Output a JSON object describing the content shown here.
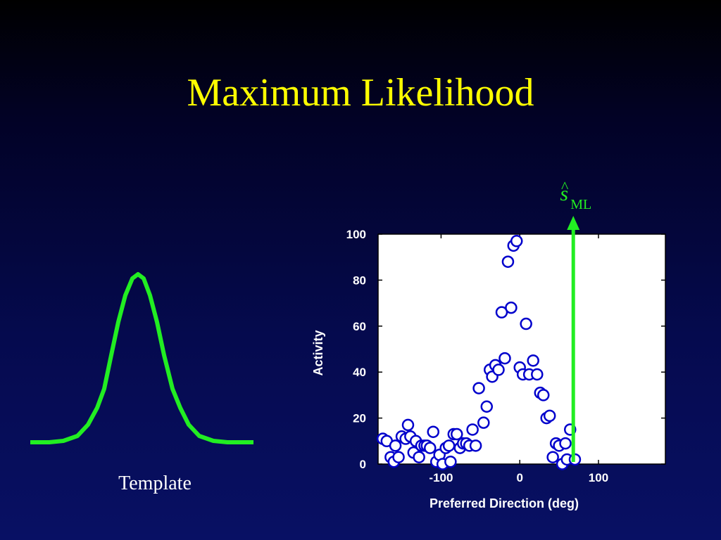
{
  "title": "Maximum Likelihood",
  "template": {
    "caption": "Template",
    "color": "#22ee22"
  },
  "estimate": {
    "symbol": "s",
    "accent": "^",
    "subscript": "ML",
    "x": 68,
    "color": "#22ee22"
  },
  "chart_data": {
    "type": "scatter",
    "xlabel": "Preferred Direction (deg)",
    "ylabel": "Activity",
    "xlim": [
      -180,
      185
    ],
    "ylim": [
      0,
      100
    ],
    "xticks": [
      -100,
      0,
      100
    ],
    "yticks": [
      0,
      20,
      40,
      60,
      80,
      100
    ],
    "xtick_labels": [
      "-100",
      "0",
      "100"
    ],
    "ytick_labels": [
      "0",
      "20",
      "40",
      "60",
      "80",
      "100"
    ],
    "grid": false,
    "marker_color": "#0000cc",
    "marker_fill": "#ffffff",
    "points": [
      [
        -174,
        11
      ],
      [
        -169,
        10
      ],
      [
        -164,
        3
      ],
      [
        -160,
        1
      ],
      [
        -158,
        8
      ],
      [
        -154,
        3
      ],
      [
        -150,
        12
      ],
      [
        -145,
        11
      ],
      [
        -142,
        17
      ],
      [
        -139,
        12
      ],
      [
        -135,
        5
      ],
      [
        -132,
        10
      ],
      [
        -128,
        3
      ],
      [
        -125,
        8
      ],
      [
        -121,
        8
      ],
      [
        -118,
        8
      ],
      [
        -114,
        7
      ],
      [
        -110,
        14
      ],
      [
        -106,
        1
      ],
      [
        -102,
        4
      ],
      [
        -98,
        0
      ],
      [
        -94,
        7
      ],
      [
        -90,
        8
      ],
      [
        -88,
        1
      ],
      [
        -84,
        13
      ],
      [
        -80,
        13
      ],
      [
        -76,
        7
      ],
      [
        -72,
        9
      ],
      [
        -68,
        9
      ],
      [
        -64,
        8
      ],
      [
        -60,
        15
      ],
      [
        -56,
        8
      ],
      [
        -52,
        33
      ],
      [
        -46,
        18
      ],
      [
        -42,
        25
      ],
      [
        -38,
        41
      ],
      [
        -35,
        38
      ],
      [
        -31,
        43
      ],
      [
        -27,
        41
      ],
      [
        -23,
        66
      ],
      [
        -19,
        46
      ],
      [
        -15,
        88
      ],
      [
        -11,
        68
      ],
      [
        -8,
        95
      ],
      [
        -4,
        97
      ],
      [
        0,
        42
      ],
      [
        4,
        39
      ],
      [
        8,
        61
      ],
      [
        12,
        39
      ],
      [
        17,
        45
      ],
      [
        22,
        39
      ],
      [
        26,
        31
      ],
      [
        30,
        30
      ],
      [
        34,
        20
      ],
      [
        38,
        21
      ],
      [
        42,
        3
      ],
      [
        46,
        9
      ],
      [
        50,
        8
      ],
      [
        54,
        0
      ],
      [
        58,
        9
      ],
      [
        60,
        2
      ],
      [
        64,
        15
      ],
      [
        70,
        2
      ]
    ]
  }
}
